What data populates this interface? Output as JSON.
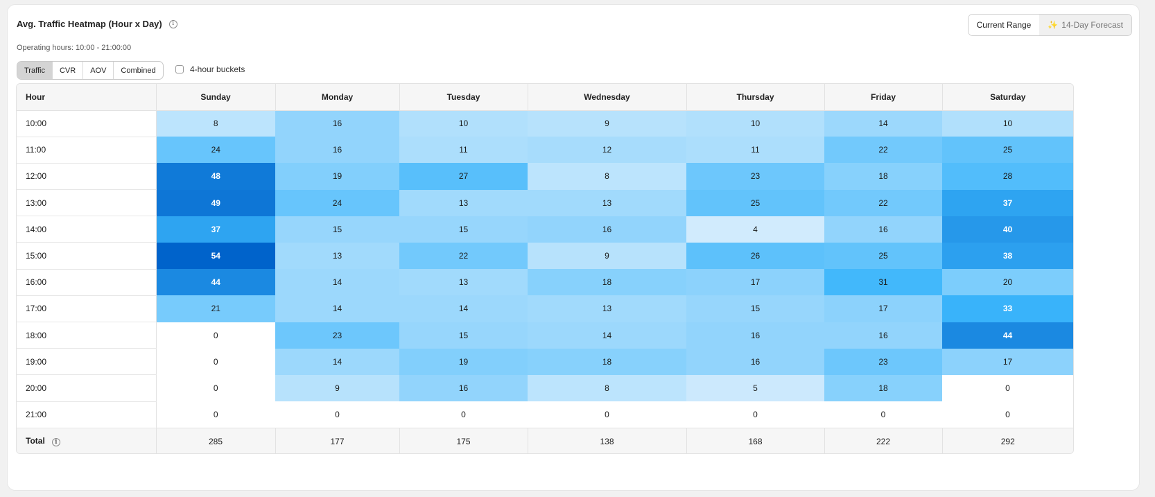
{
  "header": {
    "title": "Avg. Traffic Heatmap (Hour x Day)",
    "subtitle": "Operating hours: 10:00 - 21:00:00"
  },
  "range_toggle": {
    "current": "Current Range",
    "forecast": "14-Day Forecast"
  },
  "metric_tabs": [
    "Traffic",
    "CVR",
    "AOV",
    "Combined"
  ],
  "active_metric": "Traffic",
  "bucket_checkbox": {
    "label": "4-hour buckets",
    "checked": false
  },
  "table": {
    "hour_header": "Hour",
    "days": [
      "Sunday",
      "Monday",
      "Tuesday",
      "Wednesday",
      "Thursday",
      "Friday",
      "Saturday"
    ],
    "rows": [
      {
        "hour": "10:00",
        "values": [
          8,
          16,
          10,
          9,
          10,
          14,
          10
        ]
      },
      {
        "hour": "11:00",
        "values": [
          24,
          16,
          11,
          12,
          11,
          22,
          25
        ]
      },
      {
        "hour": "12:00",
        "values": [
          48,
          19,
          27,
          8,
          23,
          18,
          28
        ]
      },
      {
        "hour": "13:00",
        "values": [
          49,
          24,
          13,
          13,
          25,
          22,
          37
        ]
      },
      {
        "hour": "14:00",
        "values": [
          37,
          15,
          15,
          16,
          4,
          16,
          40
        ]
      },
      {
        "hour": "15:00",
        "values": [
          54,
          13,
          22,
          9,
          26,
          25,
          38
        ]
      },
      {
        "hour": "16:00",
        "values": [
          44,
          14,
          13,
          18,
          17,
          31,
          20
        ]
      },
      {
        "hour": "17:00",
        "values": [
          21,
          14,
          14,
          13,
          15,
          17,
          33
        ]
      },
      {
        "hour": "18:00",
        "values": [
          0,
          23,
          15,
          14,
          16,
          16,
          44
        ]
      },
      {
        "hour": "19:00",
        "values": [
          0,
          14,
          19,
          18,
          16,
          23,
          17
        ]
      },
      {
        "hour": "20:00",
        "values": [
          0,
          9,
          16,
          8,
          5,
          18,
          0
        ]
      },
      {
        "hour": "21:00",
        "values": [
          0,
          0,
          0,
          0,
          0,
          0,
          0
        ]
      }
    ],
    "total_label": "Total",
    "totals": [
      285,
      177,
      175,
      138,
      168,
      222,
      292
    ]
  },
  "colors": {
    "heat_low": "#e6f3fd",
    "heat_mid": "#3bb5fb",
    "heat_high": "#0063cb",
    "zero_cell": "#ffffff",
    "text_dark": "#1a1a1a",
    "text_light": "#ffffff",
    "sparkle": "#f2a93b"
  },
  "icons": {
    "info": "info-circle-icon",
    "forecast": "sparkle-icon"
  }
}
